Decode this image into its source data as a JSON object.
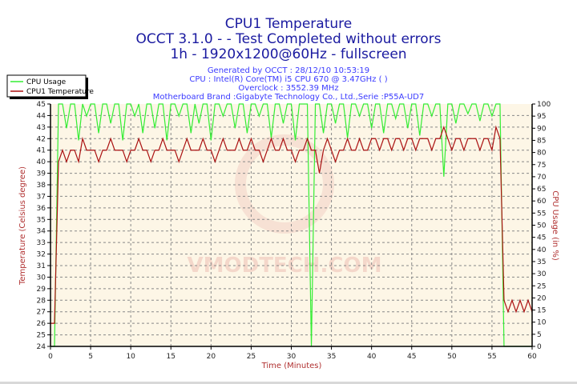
{
  "titles": [
    "CPU1 Temperature",
    "OCCT 3.1.0 -  - Test Completed without errors",
    "1h - 1920x1200@60Hz - fullscreen"
  ],
  "subtitles": [
    "Generated by OCCT : 28/12/10 10:53:19",
    "CPU : Intel(R) Core(TM) i5 CPU 670 @ 3.47GHz (  )",
    "Overclock : 3552.39 MHz",
    "Motherboard Brand :Gigabyte Technology Co., Ltd.,Serie :P55A-UD7"
  ],
  "watermark": "VMODTECH.COM",
  "chart_data": {
    "type": "line",
    "title": "CPU1 Temperature",
    "xlabel": "Time (Minutes)",
    "ylabel": "Temperature (Celsius degree)",
    "y2label": "CPU Usage (in %)",
    "xlim": [
      0,
      60
    ],
    "ylim": [
      24,
      45
    ],
    "y2lim": [
      0,
      100
    ],
    "xticks": [
      0,
      5,
      10,
      15,
      20,
      25,
      30,
      35,
      40,
      45,
      50,
      55,
      60
    ],
    "yticks": [
      24,
      25,
      26,
      27,
      28,
      29,
      30,
      31,
      32,
      33,
      34,
      35,
      36,
      37,
      38,
      39,
      40,
      41,
      42,
      43,
      44,
      45
    ],
    "y2ticks": [
      0,
      5,
      10,
      15,
      20,
      25,
      30,
      35,
      40,
      45,
      50,
      55,
      60,
      65,
      70,
      75,
      80,
      85,
      90,
      95,
      100
    ],
    "grid": true,
    "legend_position": "top-left",
    "colors": {
      "cpu_usage": "#33ee33",
      "temperature": "#aa1111",
      "plot_bg": "#fdf6e6"
    },
    "x": [
      0,
      0.5,
      1,
      1.5,
      2,
      2.5,
      3,
      3.5,
      4,
      4.5,
      5,
      5.5,
      6,
      6.5,
      7,
      7.5,
      8,
      8.5,
      9,
      9.5,
      10,
      10.5,
      11,
      11.5,
      12,
      12.5,
      13,
      13.5,
      14,
      14.5,
      15,
      15.5,
      16,
      16.5,
      17,
      17.5,
      18,
      18.5,
      19,
      19.5,
      20,
      20.5,
      21,
      21.5,
      22,
      22.5,
      23,
      23.5,
      24,
      24.5,
      25,
      25.5,
      26,
      26.5,
      27,
      27.5,
      28,
      28.5,
      29,
      29.5,
      30,
      30.5,
      31,
      31.5,
      32,
      32.5,
      33,
      33.5,
      34,
      34.5,
      35,
      35.5,
      36,
      36.5,
      37,
      37.5,
      38,
      38.5,
      39,
      39.5,
      40,
      40.5,
      41,
      41.5,
      42,
      42.5,
      43,
      43.5,
      44,
      44.5,
      45,
      45.5,
      46,
      46.5,
      47,
      47.5,
      48,
      48.5,
      49,
      49.5,
      50,
      50.5,
      51,
      51.5,
      52,
      52.5,
      53,
      53.5,
      54,
      54.5,
      55,
      55.5,
      56,
      56.5,
      57,
      57.5,
      58,
      58.5,
      59,
      59.5,
      60
    ],
    "series": [
      {
        "name": "CPU Usage",
        "axis": "right",
        "values": [
          0,
          0,
          100,
          100,
          90,
          100,
          100,
          85,
          100,
          95,
          100,
          100,
          88,
          100,
          100,
          92,
          100,
          100,
          85,
          100,
          100,
          95,
          100,
          88,
          100,
          100,
          90,
          100,
          100,
          85,
          100,
          100,
          95,
          100,
          100,
          88,
          100,
          92,
          100,
          100,
          85,
          100,
          100,
          95,
          100,
          100,
          90,
          100,
          100,
          88,
          100,
          100,
          95,
          100,
          100,
          86,
          100,
          100,
          92,
          100,
          100,
          85,
          100,
          100,
          100,
          0,
          100,
          100,
          88,
          100,
          100,
          92,
          100,
          100,
          86,
          100,
          100,
          95,
          100,
          100,
          90,
          100,
          100,
          88,
          100,
          100,
          94,
          100,
          100,
          90,
          100,
          100,
          87,
          100,
          100,
          95,
          100,
          100,
          70,
          100,
          100,
          92,
          100,
          100,
          96,
          100,
          100,
          93,
          100,
          100,
          95,
          100,
          100,
          0,
          0,
          0,
          0,
          0,
          0,
          0,
          0
        ]
      },
      {
        "name": "CPU1 Temperature",
        "axis": "left",
        "values": [
          26,
          26,
          40,
          41,
          40,
          41,
          41,
          40,
          42,
          41,
          41,
          41,
          40,
          41,
          41,
          42,
          41,
          41,
          41,
          40,
          41,
          41,
          42,
          41,
          41,
          40,
          41,
          41,
          42,
          41,
          41,
          41,
          40,
          41,
          42,
          41,
          41,
          41,
          42,
          41,
          41,
          40,
          41,
          42,
          41,
          41,
          41,
          42,
          41,
          41,
          42,
          41,
          41,
          40,
          41,
          42,
          41,
          41,
          42,
          41,
          41,
          40,
          41,
          41,
          42,
          41,
          41,
          39,
          41,
          42,
          41,
          40,
          41,
          41,
          42,
          41,
          41,
          42,
          41,
          41,
          42,
          42,
          41,
          42,
          42,
          41,
          42,
          42,
          41,
          42,
          42,
          41,
          42,
          42,
          42,
          41,
          42,
          42,
          43,
          42,
          41,
          42,
          42,
          41,
          42,
          42,
          42,
          41,
          42,
          42,
          41,
          43,
          42,
          28,
          27,
          28,
          27,
          28,
          27,
          28,
          27
        ]
      }
    ]
  }
}
